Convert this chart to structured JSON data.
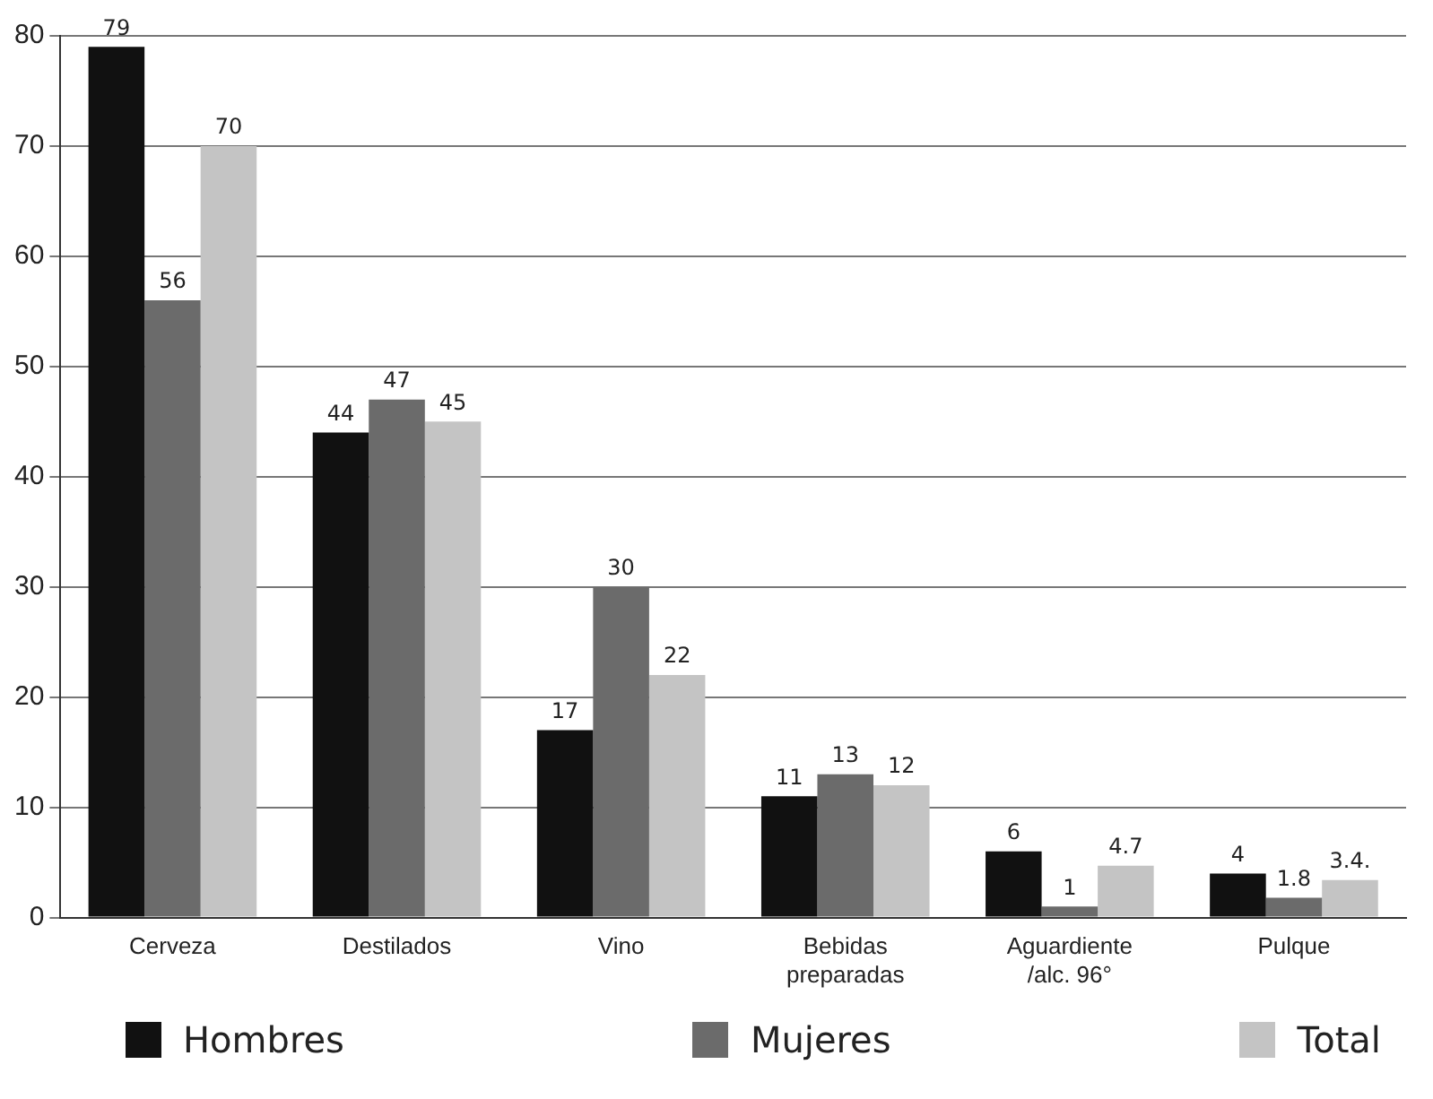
{
  "chart_data": {
    "type": "bar",
    "categories": [
      "Cerveza",
      "Destilados",
      "Vino",
      "Bebidas preparadas",
      "Aguardiente /alc. 96°",
      "Pulque"
    ],
    "series": [
      {
        "name": "Hombres",
        "color": "#111111",
        "values": [
          79,
          44,
          17,
          11,
          6,
          4
        ],
        "value_labels": [
          "79",
          "44",
          "17",
          "11",
          "6",
          "4"
        ]
      },
      {
        "name": "Mujeres",
        "color": "#6b6b6b",
        "values": [
          56,
          47,
          30,
          13,
          1,
          1.8
        ],
        "value_labels": [
          "56",
          "47",
          "30",
          "13",
          "1",
          "1.8"
        ]
      },
      {
        "name": "Total",
        "color": "#c4c4c4",
        "values": [
          70,
          45,
          22,
          12,
          4.7,
          3.4
        ],
        "value_labels": [
          "70",
          "45",
          "22",
          "12",
          "4.7",
          "3.4."
        ]
      }
    ],
    "ylim": [
      0,
      80
    ],
    "yticks": [
      0,
      10,
      20,
      30,
      40,
      50,
      60,
      70,
      80
    ],
    "grid": "y",
    "legend": "bottom",
    "data_labels": true
  }
}
